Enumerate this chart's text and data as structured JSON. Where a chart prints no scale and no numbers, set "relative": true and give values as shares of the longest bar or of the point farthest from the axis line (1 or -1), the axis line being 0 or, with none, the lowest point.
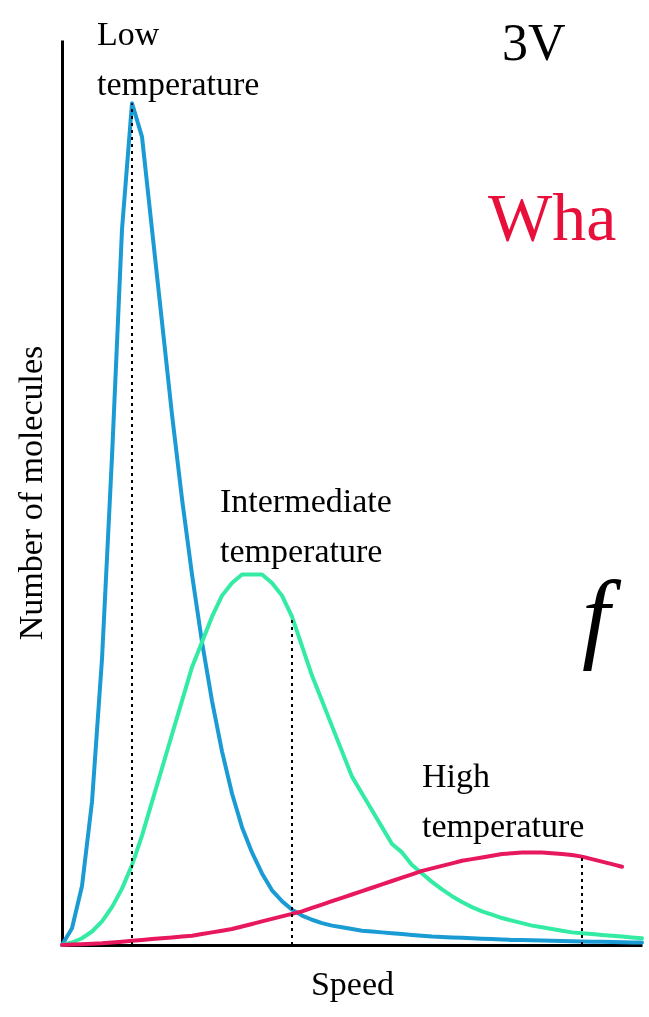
{
  "chart_data": {
    "type": "line",
    "relative": true,
    "xlabel": "Speed",
    "ylabel": "Number of molecules",
    "categories": [
      null,
      null,
      null,
      null,
      null,
      null,
      null,
      null,
      null,
      null,
      null,
      null,
      null,
      null,
      null,
      null,
      null,
      null,
      null,
      null,
      null,
      null,
      null,
      null,
      null,
      null,
      null,
      null,
      null,
      null,
      null,
      null,
      null,
      null,
      null,
      null,
      null,
      null,
      null,
      null,
      null,
      null,
      null,
      null,
      null,
      null,
      null,
      null,
      null,
      null,
      null,
      null,
      null,
      null,
      null,
      null,
      null,
      null,
      null
    ],
    "series": [
      {
        "name": "Low temperature",
        "color": "#1b9bd4",
        "values": [
          0,
          0.02,
          0.07,
          0.17,
          0.34,
          0.58,
          0.85,
          1.0,
          0.96,
          0.85,
          0.74,
          0.63,
          0.53,
          0.44,
          0.36,
          0.29,
          0.23,
          0.18,
          0.14,
          0.11,
          0.085,
          0.065,
          0.052,
          0.042,
          0.035,
          0.03,
          0.026,
          0.023,
          0.021,
          0.019,
          0.017,
          0.016,
          0.015,
          0.014,
          0.013,
          0.012,
          0.011,
          0.01,
          0.0095,
          0.009,
          0.0085,
          0.008,
          0.0075,
          0.007,
          0.0065,
          0.006,
          0.0058,
          0.0055,
          0.0052,
          0.005,
          0.0047,
          0.0045,
          0.0042,
          0.004,
          0.0038,
          0.0035,
          0.0033,
          0.0031,
          0.003
        ]
      },
      {
        "name": "Intermediate temperature",
        "color": "#33eba3",
        "values": [
          0,
          0.003,
          0.008,
          0.016,
          0.028,
          0.045,
          0.067,
          0.095,
          0.13,
          0.17,
          0.21,
          0.25,
          0.29,
          0.33,
          0.36,
          0.39,
          0.415,
          0.43,
          0.44,
          0.44,
          0.44,
          0.43,
          0.415,
          0.39,
          0.355,
          0.32,
          0.29,
          0.26,
          0.23,
          0.2,
          0.18,
          0.16,
          0.14,
          0.12,
          0.11,
          0.095,
          0.085,
          0.075,
          0.066,
          0.058,
          0.051,
          0.045,
          0.04,
          0.036,
          0.032,
          0.029,
          0.026,
          0.023,
          0.021,
          0.019,
          0.017,
          0.015,
          0.014,
          0.013,
          0.012,
          0.011,
          0.01,
          0.009,
          0.008
        ]
      },
      {
        "name": "High temperature",
        "color": "#e8185e",
        "values": [
          0,
          0.0005,
          0.001,
          0.0015,
          0.002,
          0.003,
          0.004,
          0.005,
          0.006,
          0.007,
          0.008,
          0.009,
          0.01,
          0.011,
          0.013,
          0.015,
          0.017,
          0.019,
          0.022,
          0.025,
          0.028,
          0.031,
          0.034,
          0.037,
          0.04,
          0.044,
          0.048,
          0.052,
          0.056,
          0.06,
          0.064,
          0.068,
          0.072,
          0.076,
          0.08,
          0.084,
          0.088,
          0.091,
          0.094,
          0.097,
          0.1,
          0.102,
          0.104,
          0.106,
          0.108,
          0.109,
          0.11,
          0.11,
          0.11,
          0.109,
          0.108,
          0.107,
          0.105,
          0.102,
          0.099,
          0.096,
          0.093,
          null,
          null
        ]
      }
    ],
    "annotations": [
      "3V",
      "Wha",
      "f"
    ]
  }
}
